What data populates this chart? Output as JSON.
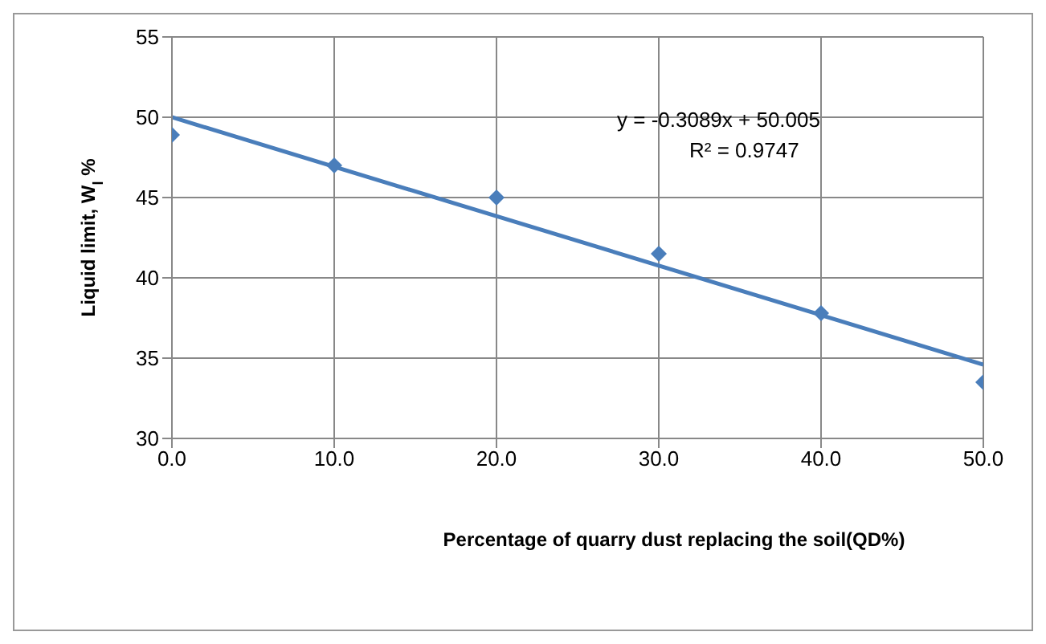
{
  "chart_data": {
    "type": "scatter",
    "xlabel": "Percentage of quarry dust replacing the soil(QD%)",
    "ylabel": "Liquid limit, W$_{l}$ %",
    "series": [
      {
        "color": "#4a7ebb",
        "x": [
          0,
          10,
          20,
          30,
          40,
          50
        ],
        "values": [
          48.9,
          47,
          45,
          41.5,
          37.8,
          33.5
        ]
      },
      {
        "type": "line",
        "color": "#4a7ebb",
        "x": [
          0,
          50
        ],
        "values": [
          50.0,
          34.6
        ],
        "marker": "none"
      }
    ],
    "marker": "diamond",
    "grid": true,
    "xlim": [
      0,
      50
    ],
    "xticks": [
      {
        "value": 0,
        "label": "0.0"
      },
      {
        "value": 10,
        "label": "10.0"
      },
      {
        "value": 20,
        "label": "20.0"
      },
      {
        "value": 30,
        "label": "30.0"
      },
      {
        "value": 40,
        "label": "40.0"
      },
      {
        "value": 50,
        "label": "50.0"
      }
    ],
    "ylim": [
      30,
      55
    ],
    "yticks": [
      30,
      35,
      40,
      45,
      50,
      55
    ],
    "annotations": [
      "y = -0.3089x + 50.005",
      "R² = 0.9747"
    ]
  }
}
